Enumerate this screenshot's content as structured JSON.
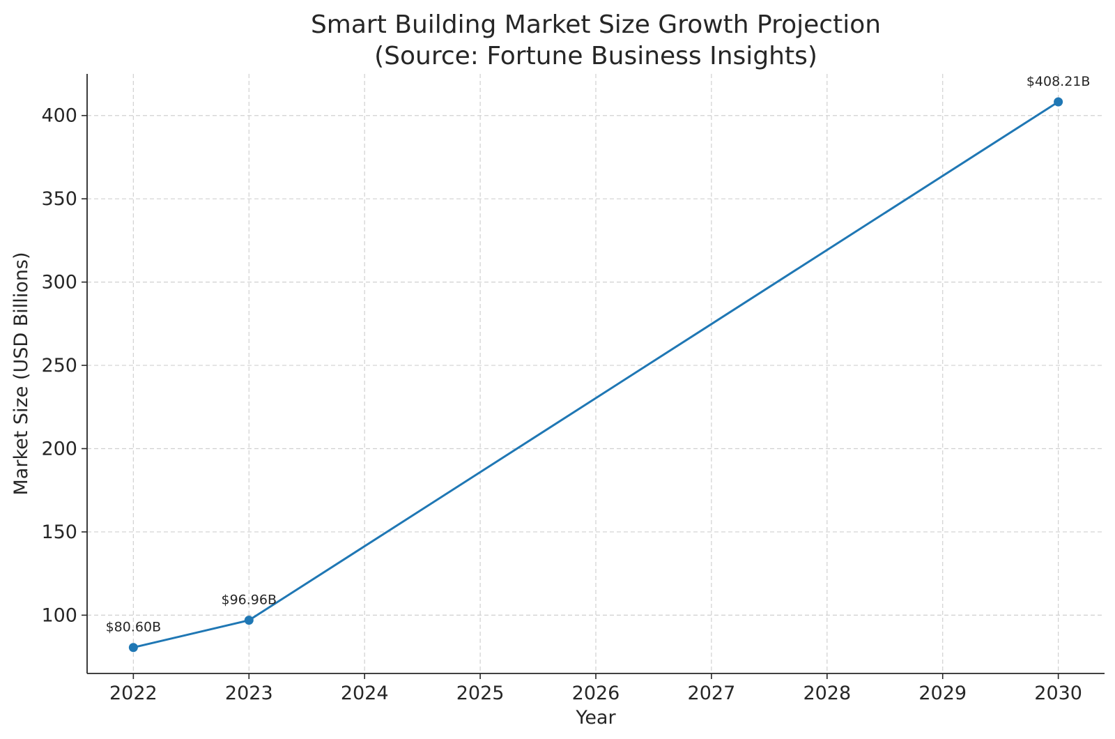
{
  "chart_data": {
    "type": "line",
    "title": "Smart Building Market Size Growth Projection",
    "subtitle": "(Source: Fortune Business Insights)",
    "xlabel": "Year",
    "ylabel": "Market Size (USD Billions)",
    "xlim": [
      2021.6,
      2030.4
    ],
    "ylim": [
      65,
      425
    ],
    "x_ticks": [
      2022,
      2023,
      2024,
      2025,
      2026,
      2027,
      2028,
      2029,
      2030
    ],
    "y_ticks": [
      100,
      150,
      200,
      250,
      300,
      350,
      400
    ],
    "grid": true,
    "series": [
      {
        "color": "#1f77b4",
        "points": [
          {
            "x": 2022,
            "y": 80.6,
            "label": "$80.60B"
          },
          {
            "x": 2023,
            "y": 96.96,
            "label": "$96.96B"
          },
          {
            "x": 2030,
            "y": 408.21,
            "label": "$408.21B"
          }
        ]
      }
    ]
  }
}
